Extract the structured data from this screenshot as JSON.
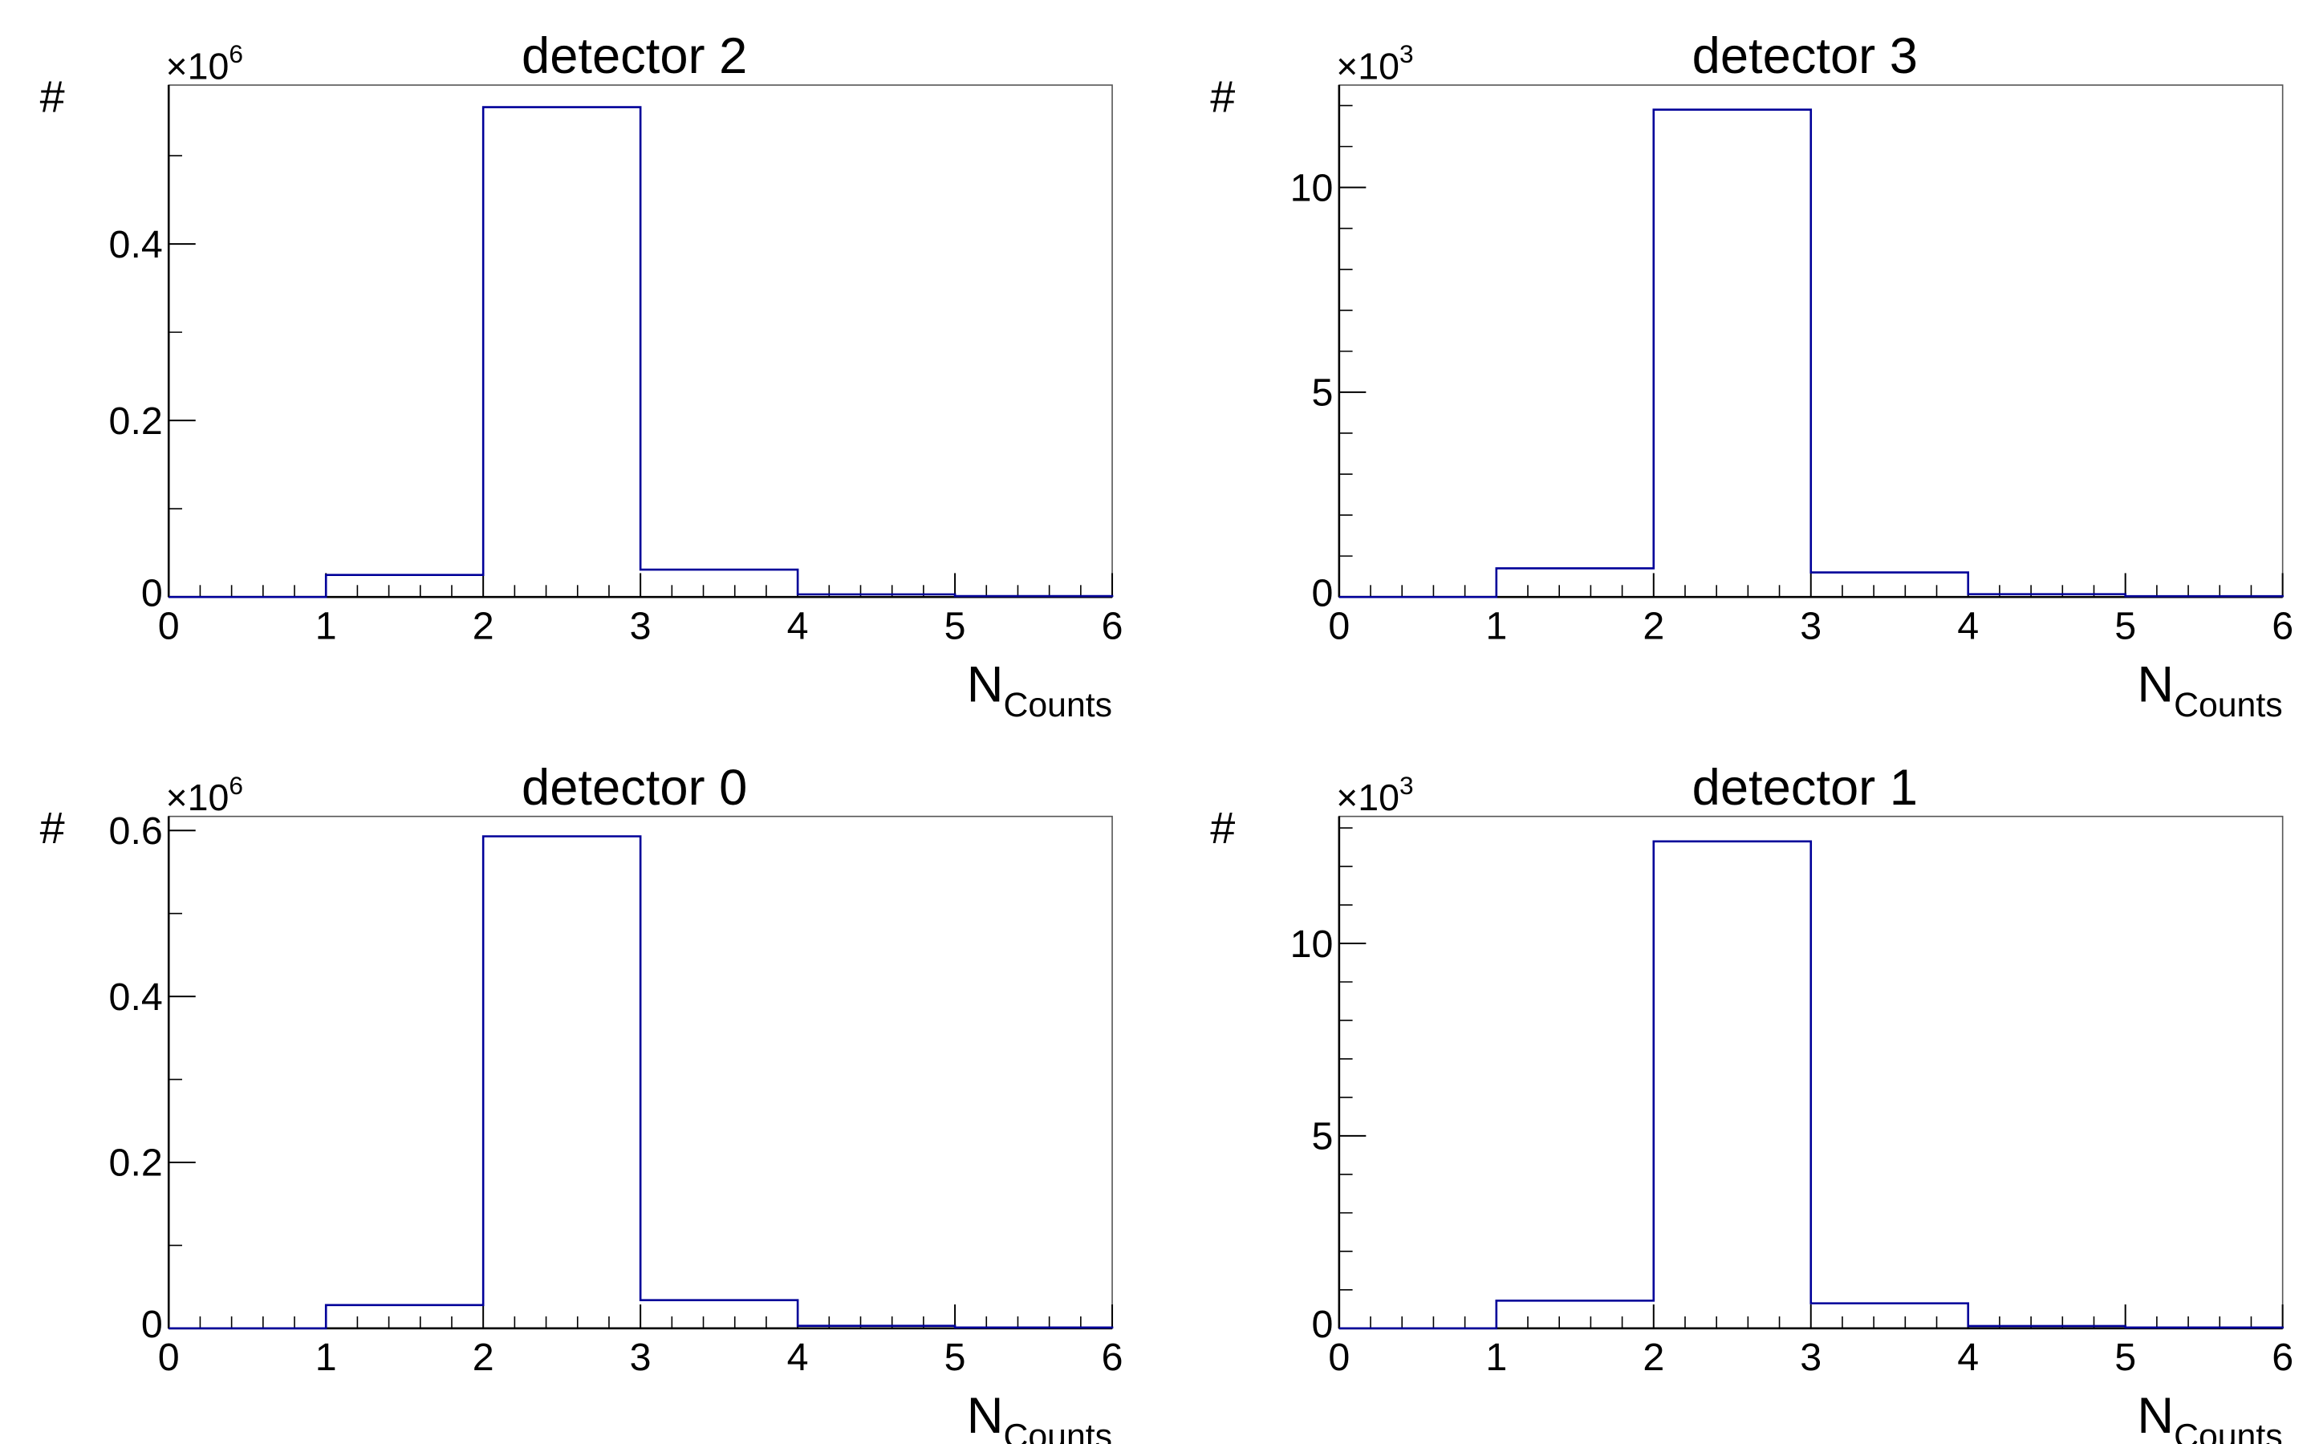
{
  "chart_data": [
    {
      "type": "bar",
      "title": "detector 2",
      "xlabel_main": "N",
      "xlabel_sub": "Counts",
      "ylabel": "#",
      "y_exponent_base": "×10",
      "y_exponent_power": "6",
      "bin_edges": [
        0,
        1,
        2,
        3,
        4,
        5,
        6
      ],
      "values": [
        0,
        0.025,
        0.555,
        0.031,
        0.003,
        0.001
      ],
      "xlim": [
        0,
        6
      ],
      "ylim": [
        0,
        0.58
      ],
      "x_ticks": [
        "0",
        "1",
        "2",
        "3",
        "4",
        "5",
        "6"
      ],
      "y_ticks": [
        {
          "value": 0,
          "label": "0"
        },
        {
          "value": 0.2,
          "label": "0.2"
        },
        {
          "value": 0.4,
          "label": "0.4"
        }
      ],
      "y_minor_step": 0.1,
      "line_color": "#000099"
    },
    {
      "type": "bar",
      "title": "detector 3",
      "xlabel_main": "N",
      "xlabel_sub": "Counts",
      "ylabel": "#",
      "y_exponent_base": "×10",
      "y_exponent_power": "3",
      "bin_edges": [
        0,
        1,
        2,
        3,
        4,
        5,
        6
      ],
      "values": [
        0,
        0.7,
        11.9,
        0.6,
        0.07,
        0.02
      ],
      "xlim": [
        0,
        6
      ],
      "ylim": [
        0,
        12.5
      ],
      "x_ticks": [
        "0",
        "1",
        "2",
        "3",
        "4",
        "5",
        "6"
      ],
      "y_ticks": [
        {
          "value": 0,
          "label": "0"
        },
        {
          "value": 5,
          "label": "5"
        },
        {
          "value": 10,
          "label": "10"
        }
      ],
      "y_minor_step": 1,
      "line_color": "#000099"
    },
    {
      "type": "bar",
      "title": "detector 0",
      "xlabel_main": "N",
      "xlabel_sub": "Counts",
      "ylabel": "#",
      "y_exponent_base": "×10",
      "y_exponent_power": "6",
      "bin_edges": [
        0,
        1,
        2,
        3,
        4,
        5,
        6
      ],
      "values": [
        0,
        0.028,
        0.593,
        0.034,
        0.003,
        0.001
      ],
      "xlim": [
        0,
        6
      ],
      "ylim": [
        0,
        0.617
      ],
      "x_ticks": [
        "0",
        "1",
        "2",
        "3",
        "4",
        "5",
        "6"
      ],
      "y_ticks": [
        {
          "value": 0,
          "label": "0"
        },
        {
          "value": 0.2,
          "label": "0.2"
        },
        {
          "value": 0.4,
          "label": "0.4"
        },
        {
          "value": 0.6,
          "label": "0.6"
        }
      ],
      "y_minor_step": 0.1,
      "line_color": "#000099"
    },
    {
      "type": "bar",
      "title": "detector 1",
      "xlabel_main": "N",
      "xlabel_sub": "Counts",
      "ylabel": "#",
      "y_exponent_base": "×10",
      "y_exponent_power": "3",
      "bin_edges": [
        0,
        1,
        2,
        3,
        4,
        5,
        6
      ],
      "values": [
        0,
        0.72,
        12.65,
        0.65,
        0.06,
        0.02
      ],
      "xlim": [
        0,
        6
      ],
      "ylim": [
        0,
        13.3
      ],
      "x_ticks": [
        "0",
        "1",
        "2",
        "3",
        "4",
        "5",
        "6"
      ],
      "y_ticks": [
        {
          "value": 0,
          "label": "0"
        },
        {
          "value": 5,
          "label": "5"
        },
        {
          "value": 10,
          "label": "10"
        }
      ],
      "y_minor_step": 1,
      "line_color": "#000099"
    }
  ]
}
